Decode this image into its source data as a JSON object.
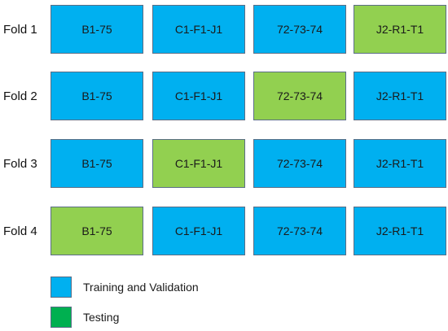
{
  "colors": {
    "training": "#00b0f0",
    "testing_cell": "#92d050",
    "testing_legend": "#00b050"
  },
  "folds": [
    {
      "label": "Fold 1",
      "cells": [
        {
          "text": "B1-75",
          "role": "training"
        },
        {
          "text": "C1-F1-J1",
          "role": "training"
        },
        {
          "text": "72-73-74",
          "role": "training"
        },
        {
          "text": "J2-R1-T1",
          "role": "testing"
        }
      ]
    },
    {
      "label": "Fold 2",
      "cells": [
        {
          "text": "B1-75",
          "role": "training"
        },
        {
          "text": "C1-F1-J1",
          "role": "training"
        },
        {
          "text": "72-73-74",
          "role": "testing"
        },
        {
          "text": "J2-R1-T1",
          "role": "training"
        }
      ]
    },
    {
      "label": "Fold 3",
      "cells": [
        {
          "text": "B1-75",
          "role": "training"
        },
        {
          "text": "C1-F1-J1",
          "role": "testing"
        },
        {
          "text": "72-73-74",
          "role": "training"
        },
        {
          "text": "J2-R1-T1",
          "role": "training"
        }
      ]
    },
    {
      "label": "Fold 4",
      "cells": [
        {
          "text": "B1-75",
          "role": "testing"
        },
        {
          "text": "C1-F1-J1",
          "role": "training"
        },
        {
          "text": "72-73-74",
          "role": "training"
        },
        {
          "text": "J2-R1-T1",
          "role": "training"
        }
      ]
    }
  ],
  "legend": {
    "training": "Training and Validation",
    "testing": "Testing"
  }
}
